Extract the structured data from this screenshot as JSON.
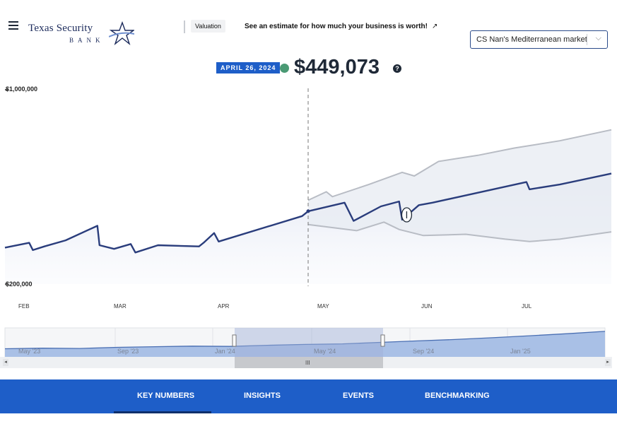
{
  "header": {
    "logo_line1": "Texas Security",
    "logo_line2": "BANK",
    "valuation_tag": "Valuation",
    "promo_text": "See an estimate for how much your business is worth!",
    "promo_arrow": "↗",
    "business_select": {
      "value": "CS Nan's Mediterranean market",
      "chevron": "⌵"
    }
  },
  "summary": {
    "date": "APRIL 26, 2024",
    "value": "$449,073",
    "help": "?",
    "status_color": "#4a9a74"
  },
  "chart_data": {
    "type": "line",
    "y_ticks": [
      "$1,000,000",
      "$200,000"
    ],
    "x_ticks": [
      "FEB",
      "MAR",
      "APR",
      "MAY",
      "JUN",
      "JUL"
    ],
    "ylim": [
      200000,
      1000000
    ],
    "marker_date": "APRIL 26, 2024",
    "series": [
      {
        "kind": "actual",
        "values": [
          [
            0.0,
            350000
          ],
          [
            0.8,
            370000
          ],
          [
            0.92,
            340000
          ],
          [
            1.3,
            355000
          ],
          [
            2.0,
            380000
          ],
          [
            3.05,
            440000
          ],
          [
            3.12,
            360000
          ],
          [
            3.6,
            345000
          ],
          [
            4.15,
            365000
          ],
          [
            4.3,
            330000
          ],
          [
            5.05,
            360000
          ],
          [
            6.4,
            355000
          ],
          [
            6.55,
            370000
          ],
          [
            6.9,
            410000
          ],
          [
            7.05,
            375000
          ],
          [
            9.8,
            480000
          ],
          [
            10.0,
            500000
          ]
        ]
      },
      {
        "kind": "forecast",
        "values": [
          [
            10.0,
            500000
          ],
          [
            11.2,
            535000
          ],
          [
            11.5,
            460000
          ],
          [
            12.4,
            520000
          ],
          [
            13.0,
            540000
          ],
          [
            13.1,
            465000
          ],
          [
            13.65,
            525000
          ],
          [
            14.1,
            535000
          ],
          [
            17.2,
            620000
          ],
          [
            17.3,
            590000
          ],
          [
            18.3,
            610000
          ],
          [
            20.0,
            655000
          ]
        ]
      },
      {
        "kind": "upper",
        "values": [
          [
            10.0,
            545000
          ],
          [
            10.6,
            580000
          ],
          [
            10.8,
            560000
          ],
          [
            12.0,
            610000
          ],
          [
            13.1,
            660000
          ],
          [
            13.5,
            645000
          ],
          [
            14.3,
            705000
          ],
          [
            15.6,
            730000
          ],
          [
            16.8,
            760000
          ],
          [
            18.3,
            790000
          ],
          [
            20.0,
            835000
          ]
        ]
      },
      {
        "kind": "lower",
        "values": [
          [
            10.0,
            445000
          ],
          [
            11.6,
            420000
          ],
          [
            12.5,
            455000
          ],
          [
            13.0,
            425000
          ],
          [
            13.8,
            400000
          ],
          [
            15.2,
            405000
          ],
          [
            16.5,
            385000
          ],
          [
            17.3,
            375000
          ],
          [
            18.3,
            385000
          ],
          [
            20.0,
            415000
          ]
        ]
      }
    ]
  },
  "navigator": {
    "labels": [
      "May '23",
      "Sep '23",
      "Jan '24",
      "May '24",
      "Sep '24",
      "Jan '25"
    ],
    "left_arrow": "◂",
    "right_arrow": "▸",
    "grip": "III",
    "series": [
      [
        0,
        0.28
      ],
      [
        2,
        0.3
      ],
      [
        4,
        0.29
      ],
      [
        6,
        0.33
      ],
      [
        8,
        0.35
      ],
      [
        10,
        0.37
      ],
      [
        12,
        0.36
      ],
      [
        14,
        0.4
      ],
      [
        16,
        0.43
      ],
      [
        18,
        0.45
      ],
      [
        20,
        0.5
      ],
      [
        22,
        0.55
      ],
      [
        24,
        0.6
      ],
      [
        26,
        0.66
      ],
      [
        28,
        0.73
      ],
      [
        30,
        0.8
      ],
      [
        32,
        0.88
      ]
    ]
  },
  "tabs": [
    {
      "label": "KEY NUMBERS",
      "active": true
    },
    {
      "label": "INSIGHTS"
    },
    {
      "label": "EVENTS"
    },
    {
      "label": "BENCHMARKING"
    }
  ],
  "colors": {
    "accent": "#1e5ec8",
    "line": "#2a3d7c",
    "band": "#b8bcc4",
    "tab_underline": "#0f2f6b"
  }
}
